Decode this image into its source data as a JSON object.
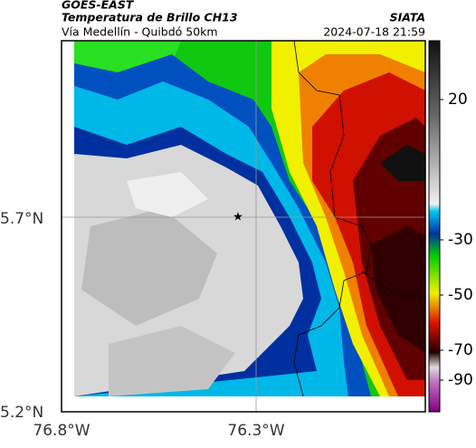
{
  "header": {
    "satellite": "GOES-EAST",
    "product": "Temperatura de Brillo CH13",
    "source": "SIATA",
    "region": "Vía Medellín - Quibdó 50km",
    "datetime": "2024-07-18 21:59"
  },
  "map": {
    "lat_ticks": [
      "5.7°N",
      "5.2°N"
    ],
    "lon_ticks": [
      "76.8°W",
      "76.3°W"
    ],
    "marker": "★"
  },
  "colorbar": {
    "ticks": [
      20,
      -30,
      -50,
      -70,
      -90
    ]
  }
}
